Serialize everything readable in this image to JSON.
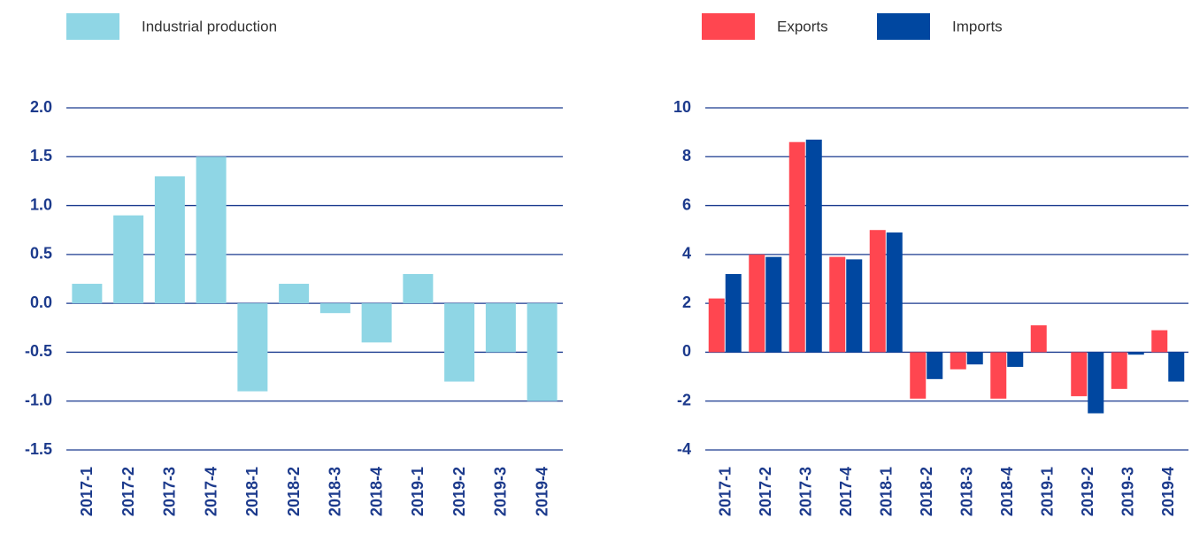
{
  "chart_data": [
    {
      "type": "bar",
      "categories": [
        "2017-1",
        "2017-2",
        "2017-3",
        "2017-4",
        "2018-1",
        "2018-2",
        "2018-3",
        "2018-4",
        "2019-1",
        "2019-2",
        "2019-3",
        "2019-4"
      ],
      "series": [
        {
          "name": "Industrial production",
          "color": "#8fd6e5",
          "values": [
            0.2,
            0.9,
            1.3,
            1.5,
            -0.9,
            0.2,
            -0.1,
            -0.4,
            0.3,
            -0.8,
            -0.5,
            -1.0
          ]
        }
      ],
      "ylim": [
        -1.5,
        2.0
      ],
      "yticks": [
        {
          "value": -1.5,
          "label": "-1.5"
        },
        {
          "value": -1.0,
          "label": "-1.0"
        },
        -0.5,
        {
          "value": 0,
          "label": "0.0"
        },
        0.5,
        {
          "value": 1.0,
          "label": "1.0"
        },
        1.5,
        {
          "value": 2.0,
          "label": "2.0"
        }
      ],
      "grid": true
    },
    {
      "type": "bar",
      "categories": [
        "2017-1",
        "2017-2",
        "2017-3",
        "2017-4",
        "2018-1",
        "2018-2",
        "2018-3",
        "2018-4",
        "2019-1",
        "2019-2",
        "2019-3",
        "2019-4"
      ],
      "series": [
        {
          "name": "Exports",
          "color": "#ff4650",
          "values": [
            2.2,
            4.0,
            8.6,
            3.9,
            5.0,
            -1.9,
            -0.7,
            -1.9,
            1.1,
            -1.8,
            -1.5,
            0.9
          ]
        },
        {
          "name": "Imports",
          "color": "#0047a0",
          "values": [
            3.2,
            3.9,
            8.7,
            3.8,
            4.9,
            -1.1,
            -0.5,
            -0.6,
            0,
            -2.5,
            -0.1,
            -1.2
          ]
        }
      ],
      "ylim": [
        -4,
        10
      ],
      "yticks": [
        -4,
        -2,
        0,
        2,
        4,
        6,
        8,
        10
      ],
      "grid": true
    }
  ]
}
